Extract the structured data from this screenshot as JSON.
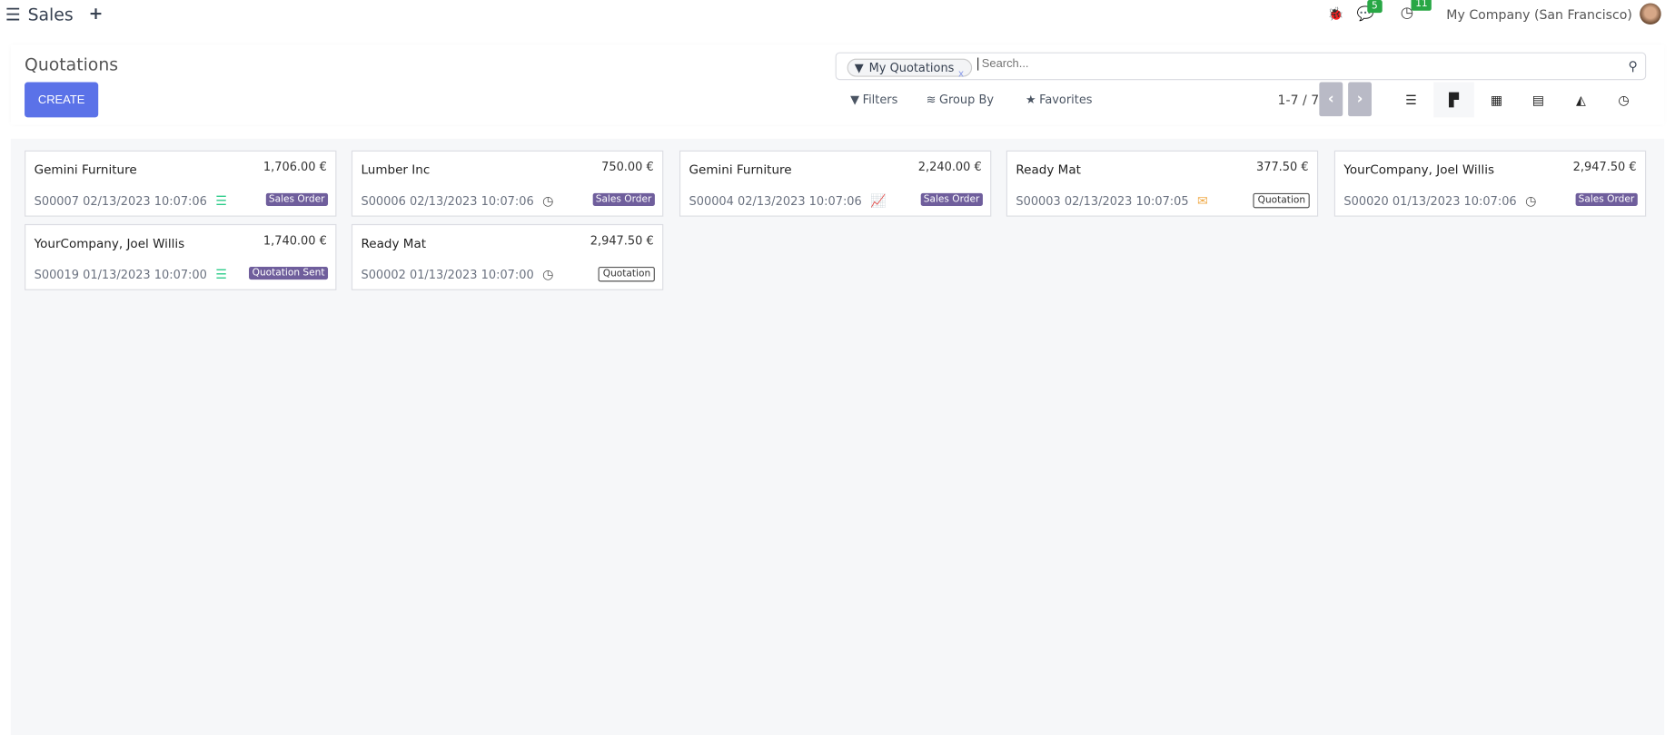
{
  "topbar": {
    "app": "Sales",
    "messages_count": "5",
    "activities_count": "11",
    "company": "My Company (San Francisco)"
  },
  "control": {
    "title": "Quotations",
    "create": "CREATE",
    "facet": "My Quotations",
    "search_placeholder": "Search...",
    "filters": "Filters",
    "group_by": "Group By",
    "favorites": "Favorites",
    "pager": "1-7 / 7"
  },
  "colors": {
    "primary": "#5b72e8",
    "badge": "#6f5e9c",
    "activity_green": "#28a745"
  },
  "cards": [
    {
      "customer": "Gemini Furniture",
      "amount": "1,706.00 €",
      "ref": "S00007 02/13/2023 10:07:06",
      "activity": "server-icon",
      "status": "Sales Order",
      "style": "filled"
    },
    {
      "customer": "Lumber Inc",
      "amount": "750.00 €",
      "ref": "S00006 02/13/2023 10:07:06",
      "activity": "clock-icon",
      "status": "Sales Order",
      "style": "filled"
    },
    {
      "customer": "Gemini Furniture",
      "amount": "2,240.00 €",
      "ref": "S00004 02/13/2023 10:07:06",
      "activity": "line-chart-icon",
      "status": "Sales Order",
      "style": "filled"
    },
    {
      "customer": "Ready Mat",
      "amount": "377.50 €",
      "ref": "S00003 02/13/2023 10:07:05",
      "activity": "envelope-icon",
      "status": "Quotation",
      "style": "outline"
    },
    {
      "customer": "YourCompany, Joel Willis",
      "amount": "2,947.50 €",
      "ref": "S00020 01/13/2023 10:07:06",
      "activity": "clock-icon",
      "status": "Sales Order",
      "style": "filled"
    },
    {
      "customer": "YourCompany, Joel Willis",
      "amount": "1,740.00 €",
      "ref": "S00019 01/13/2023 10:07:00",
      "activity": "server-icon",
      "status": "Quotation Sent",
      "style": "filled"
    },
    {
      "customer": "Ready Mat",
      "amount": "2,947.50 €",
      "ref": "S00002 01/13/2023 10:07:00",
      "activity": "clock-icon",
      "status": "Quotation",
      "style": "outline"
    }
  ]
}
